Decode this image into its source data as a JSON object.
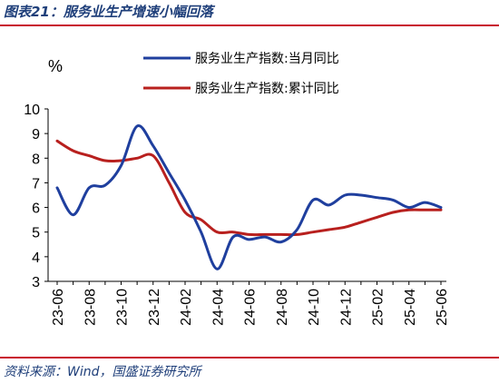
{
  "figure": {
    "title": "图表21：服务业生产增速小幅回落",
    "source": "资料来源：Wind，国盛证券研究所",
    "accent_color": "#c8102e"
  },
  "chart_data": {
    "type": "line",
    "title": "",
    "unit_label": "%",
    "xlabel": "",
    "ylabel": "",
    "ylim": [
      3,
      10
    ],
    "yticks": [
      3,
      4,
      5,
      6,
      7,
      8,
      9,
      10
    ],
    "x": [
      "23-06",
      "23-07",
      "23-08",
      "23-09",
      "23-10",
      "23-11",
      "23-12",
      "24-01",
      "24-02",
      "24-03",
      "24-04",
      "24-05",
      "24-06",
      "24-07",
      "24-08",
      "24-09",
      "24-10",
      "24-11",
      "24-12",
      "25-01",
      "25-02",
      "25-03",
      "25-04",
      "25-05",
      "25-06"
    ],
    "xtick_labels": [
      "23-06",
      "23-08",
      "23-10",
      "23-12",
      "24-02",
      "24-04",
      "24-06",
      "24-08",
      "24-10",
      "24-12",
      "25-02",
      "25-04",
      "25-06"
    ],
    "grid": false,
    "legend_position": "top-center",
    "series": [
      {
        "name": "服务业生产指数:当月同比",
        "color": "#1f3f9e",
        "values": [
          6.8,
          5.7,
          6.8,
          6.9,
          7.7,
          9.3,
          8.5,
          7.4,
          6.3,
          5.0,
          3.5,
          4.8,
          4.7,
          4.8,
          4.6,
          5.1,
          6.3,
          6.1,
          6.5,
          6.5,
          6.4,
          6.3,
          6.0,
          6.2,
          6.0
        ]
      },
      {
        "name": "服务业生产指数:累计同比",
        "color": "#b8201e",
        "values": [
          8.7,
          8.3,
          8.1,
          7.9,
          7.9,
          8.0,
          8.1,
          7.0,
          5.8,
          5.5,
          5.0,
          5.0,
          4.9,
          4.9,
          4.9,
          4.9,
          5.0,
          5.1,
          5.2,
          5.4,
          5.6,
          5.8,
          5.9,
          5.9,
          5.9
        ]
      }
    ]
  }
}
